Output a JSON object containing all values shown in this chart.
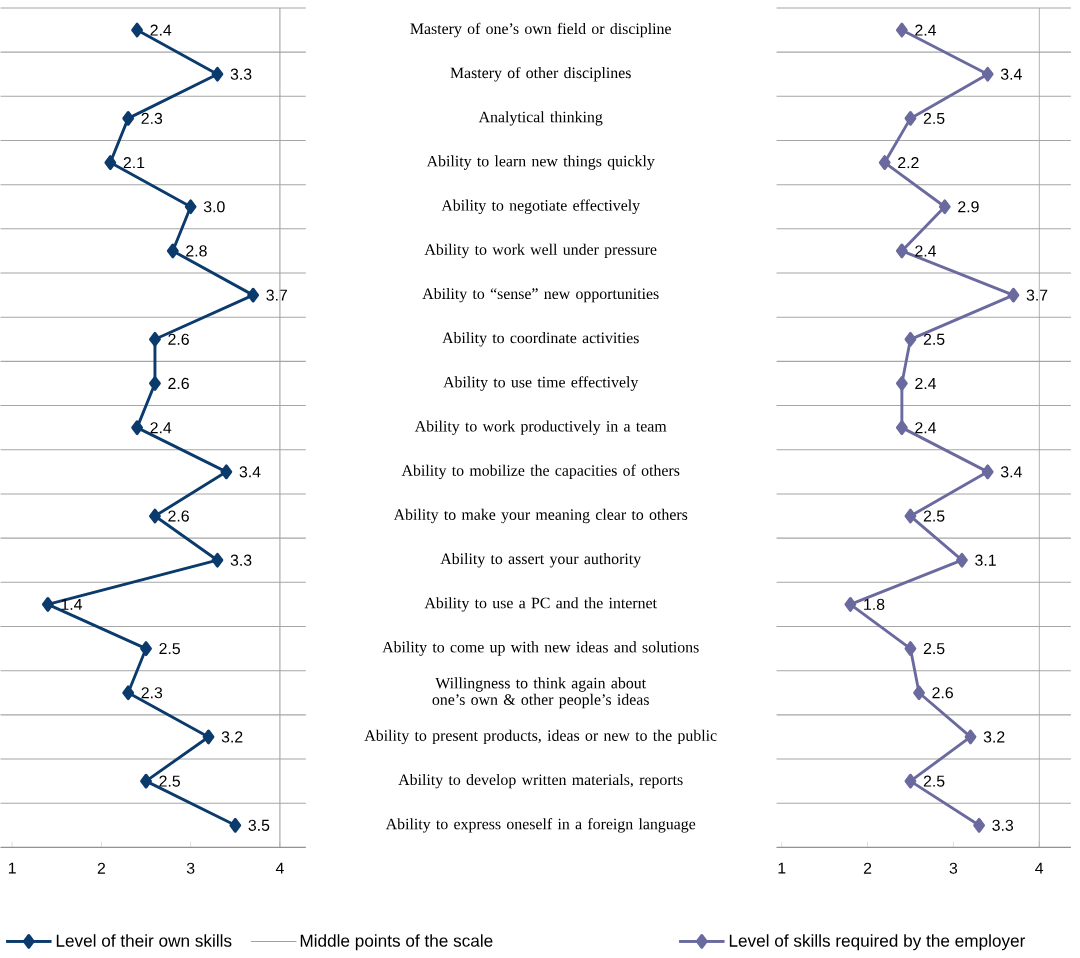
{
  "chart_data": [
    {
      "type": "line",
      "categories": [
        "Mastery of one’s own field or discipline",
        "Mastery of other disciplines",
        "Analytical thinking",
        "Ability to learn new things quickly",
        "Ability to negotiate effectively",
        "Ability to work well under pressure",
        "Ability to “sense” new opportunities",
        "Ability to coordinate activities",
        "Ability to use time effectively",
        "Ability to work productively in a team",
        "Ability to mobilize the capacities of others",
        "Ability to make your meaning clear to others",
        "Ability to assert your authority",
        "Ability to use a PC and the internet",
        "Ability to come up with new ideas and solutions",
        "Willingness to think again about one’s own & other people’s ideas",
        "Ability to present products, ideas or new to the public",
        "Ability to develop written materials, reports",
        "Ability to express oneself in a foreign language"
      ],
      "orientation": "horizontal",
      "xlim": [
        0.87,
        4.29
      ],
      "xticks": [
        1,
        2,
        3,
        4
      ],
      "series": [
        {
          "name": "Level of their own skills",
          "color": "#0b3a6c",
          "values": [
            2.4,
            3.3,
            2.3,
            2.1,
            3.0,
            2.8,
            3.7,
            2.6,
            2.6,
            2.4,
            3.4,
            2.6,
            3.3,
            1.4,
            2.5,
            2.3,
            3.2,
            2.5,
            3.5
          ],
          "value_labels": [
            "2.4",
            "3.3",
            "2.3",
            "2.1",
            "3.0",
            "2.8",
            "3.7",
            "2.6",
            "2.6",
            "2.4",
            "3.4",
            "2.6",
            "3.3",
            "1.4",
            "2.5",
            "2.3",
            "3.2",
            "2.5",
            "3.5"
          ]
        }
      ],
      "ref_lines": [
        {
          "axis": "x",
          "value": 4,
          "label": "Middle points of the scale",
          "color": "#a0a0a0"
        }
      ],
      "marker": "diamond",
      "grid": "y",
      "legend": "bottom"
    },
    {
      "type": "line",
      "categories": [
        null,
        null,
        null,
        null,
        null,
        null,
        null,
        null,
        null,
        null,
        null,
        null,
        null,
        null,
        null,
        null,
        null,
        null,
        null
      ],
      "orientation": "horizontal",
      "xlim": [
        0.94,
        4.37
      ],
      "xticks": [
        1,
        2,
        3,
        4
      ],
      "tick_labels": "x",
      "series": [
        {
          "name": "Level of skills required by the employer",
          "color": "#6a6a9f",
          "values": [
            2.4,
            3.4,
            2.5,
            2.2,
            2.9,
            2.4,
            3.7,
            2.5,
            2.4,
            2.4,
            3.4,
            2.5,
            3.1,
            1.8,
            2.5,
            2.6,
            3.2,
            2.5,
            3.3
          ],
          "value_labels": [
            "2.4",
            "3.4",
            "2.5",
            "2.2",
            "2.9",
            "2.4",
            "3.7",
            "2.5",
            "2.4",
            "2.4",
            "3.4",
            "2.5",
            "3.1",
            "1.8",
            "2.5",
            "2.6",
            "3.2",
            "2.5",
            "3.3"
          ]
        }
      ],
      "ref_lines": [
        {
          "axis": "x",
          "value": 4,
          "color": "#a0a0a0"
        }
      ],
      "marker": "diamond",
      "grid": "y",
      "legend": "bottom"
    }
  ]
}
